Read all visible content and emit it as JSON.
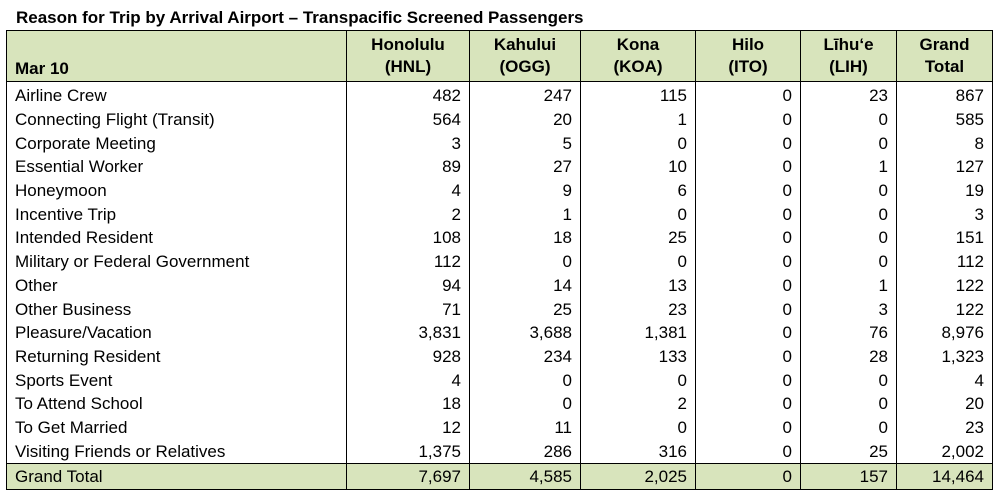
{
  "title": "Reason for Trip by Arrival Airport – Transpacific Screened Passengers",
  "table": {
    "row_header_label": "Mar 10",
    "columns": [
      {
        "line1": "Honolulu",
        "line2": "(HNL)"
      },
      {
        "line1": "Kahului",
        "line2": "(OGG)"
      },
      {
        "line1": "Kona",
        "line2": "(KOA)"
      },
      {
        "line1": "Hilo",
        "line2": "(ITO)"
      },
      {
        "line1": "Līhu‘e",
        "line2": "(LIH)"
      },
      {
        "line1": "Grand",
        "line2": "Total"
      }
    ],
    "rows": [
      {
        "label": "Airline Crew",
        "values": [
          "482",
          "247",
          "115",
          "0",
          "23",
          "867"
        ]
      },
      {
        "label": "Connecting Flight (Transit)",
        "values": [
          "564",
          "20",
          "1",
          "0",
          "0",
          "585"
        ]
      },
      {
        "label": "Corporate Meeting",
        "values": [
          "3",
          "5",
          "0",
          "0",
          "0",
          "8"
        ]
      },
      {
        "label": "Essential Worker",
        "values": [
          "89",
          "27",
          "10",
          "0",
          "1",
          "127"
        ]
      },
      {
        "label": "Honeymoon",
        "values": [
          "4",
          "9",
          "6",
          "0",
          "0",
          "19"
        ]
      },
      {
        "label": "Incentive Trip",
        "values": [
          "2",
          "1",
          "0",
          "0",
          "0",
          "3"
        ]
      },
      {
        "label": "Intended Resident",
        "values": [
          "108",
          "18",
          "25",
          "0",
          "0",
          "151"
        ]
      },
      {
        "label": "Military or Federal Government",
        "values": [
          "112",
          "0",
          "0",
          "0",
          "0",
          "112"
        ]
      },
      {
        "label": "Other",
        "values": [
          "94",
          "14",
          "13",
          "0",
          "1",
          "122"
        ]
      },
      {
        "label": "Other Business",
        "values": [
          "71",
          "25",
          "23",
          "0",
          "3",
          "122"
        ]
      },
      {
        "label": "Pleasure/Vacation",
        "values": [
          "3,831",
          "3,688",
          "1,381",
          "0",
          "76",
          "8,976"
        ]
      },
      {
        "label": "Returning Resident",
        "values": [
          "928",
          "234",
          "133",
          "0",
          "28",
          "1,323"
        ]
      },
      {
        "label": "Sports Event",
        "values": [
          "4",
          "0",
          "0",
          "0",
          "0",
          "4"
        ]
      },
      {
        "label": "To Attend School",
        "values": [
          "18",
          "0",
          "2",
          "0",
          "0",
          "20"
        ]
      },
      {
        "label": "To Get Married",
        "values": [
          "12",
          "11",
          "0",
          "0",
          "0",
          "23"
        ]
      },
      {
        "label": "Visiting Friends or Relatives",
        "values": [
          "1,375",
          "286",
          "316",
          "0",
          "25",
          "2,002"
        ]
      }
    ],
    "total_row": {
      "label": "Grand Total",
      "values": [
        "7,697",
        "4,585",
        "2,025",
        "0",
        "157",
        "14,464"
      ]
    }
  },
  "colors": {
    "header_fill": "#d8e4bc",
    "border": "#000000"
  }
}
